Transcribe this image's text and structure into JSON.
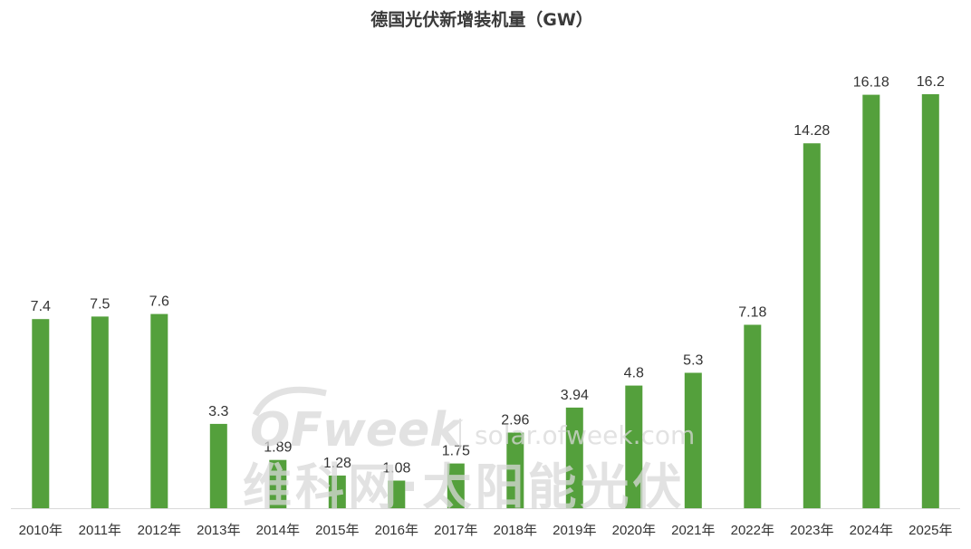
{
  "chart_data": {
    "type": "bar",
    "title": "德国光伏新增装机量（GW）",
    "categories": [
      "2010年",
      "2011年",
      "2012年",
      "2013年",
      "2014年",
      "2015年",
      "2016年",
      "2017年",
      "2018年",
      "2019年",
      "2020年",
      "2021年",
      "2022年",
      "2023年",
      "2024年",
      "2025年"
    ],
    "values": [
      7.4,
      7.5,
      7.6,
      3.3,
      1.89,
      1.28,
      1.08,
      1.75,
      2.96,
      3.94,
      4.8,
      5.3,
      7.18,
      14.28,
      16.18,
      16.2
    ],
    "data_labels": [
      "7.4",
      "7.5",
      "7.6",
      "3.3",
      "1.89",
      "1.28",
      "1.08",
      "1.75",
      "2.96",
      "3.94",
      "4.8",
      "5.3",
      "7.18",
      "14.28",
      "16.18",
      "16.2"
    ],
    "ylim": [
      0,
      16.2
    ],
    "grid": false,
    "legend": "none",
    "bar_color": "#54A03C",
    "axis_color": "#d9d9d9"
  },
  "watermark": {
    "logo": "OFweek",
    "url": "solar.ofweek.com",
    "name": "维科网·太阳能光伏"
  }
}
